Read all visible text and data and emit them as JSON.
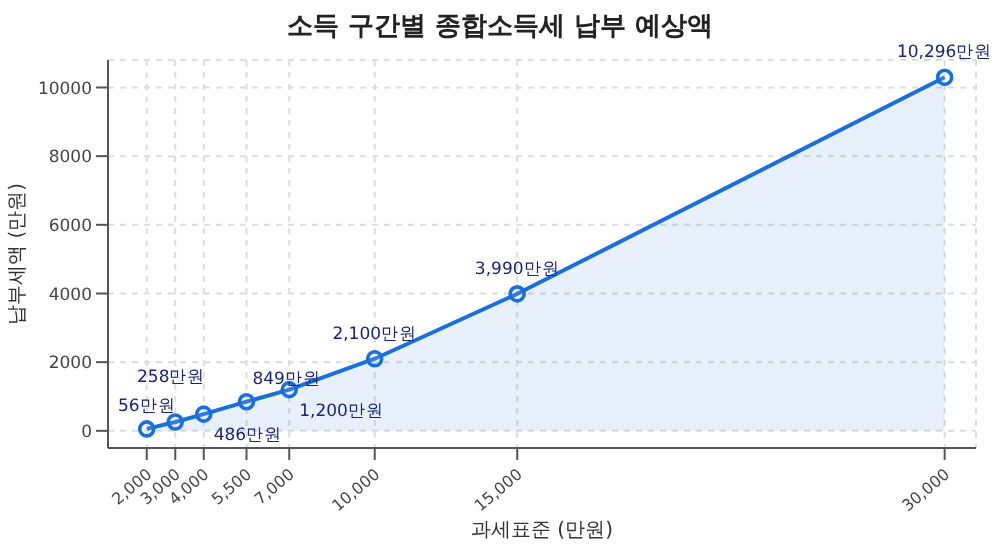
{
  "chart_data": {
    "type": "area",
    "title": "소득 구간별 종합소득세 납부 예상액",
    "xlabel": "과세표준 (만원)",
    "ylabel": "납부세액 (만원)",
    "x": [
      2000,
      3000,
      4000,
      5500,
      7000,
      10000,
      15000,
      30000
    ],
    "series": [
      {
        "color": "#1a6fdf",
        "values": [
          56,
          258,
          486,
          849,
          1200,
          2100,
          3990,
          10296
        ],
        "value_labels": [
          "56만원",
          "258만원",
          "486만원",
          "849만원",
          "1,200만원",
          "2,100만원",
          "3,990만원",
          "10,296만원"
        ]
      }
    ],
    "xlim": [
      640,
      31100
    ],
    "xticks": [
      {
        "value": 2000,
        "label": "2,000"
      },
      {
        "value": 3000,
        "label": "3,000"
      },
      {
        "value": 4000,
        "label": "4,000"
      },
      {
        "value": 5500,
        "label": "5,500"
      },
      {
        "value": 7000,
        "label": "7,000"
      },
      {
        "value": 10000,
        "label": "10,000"
      },
      {
        "value": 15000,
        "label": "15,000"
      },
      {
        "value": 30000,
        "label": "30,000"
      }
    ],
    "ylim": [
      -500,
      10800
    ],
    "yticks": [
      0,
      2000,
      4000,
      6000,
      8000,
      10000
    ],
    "grid": true,
    "marker": "circle",
    "line_style": "solid"
  }
}
